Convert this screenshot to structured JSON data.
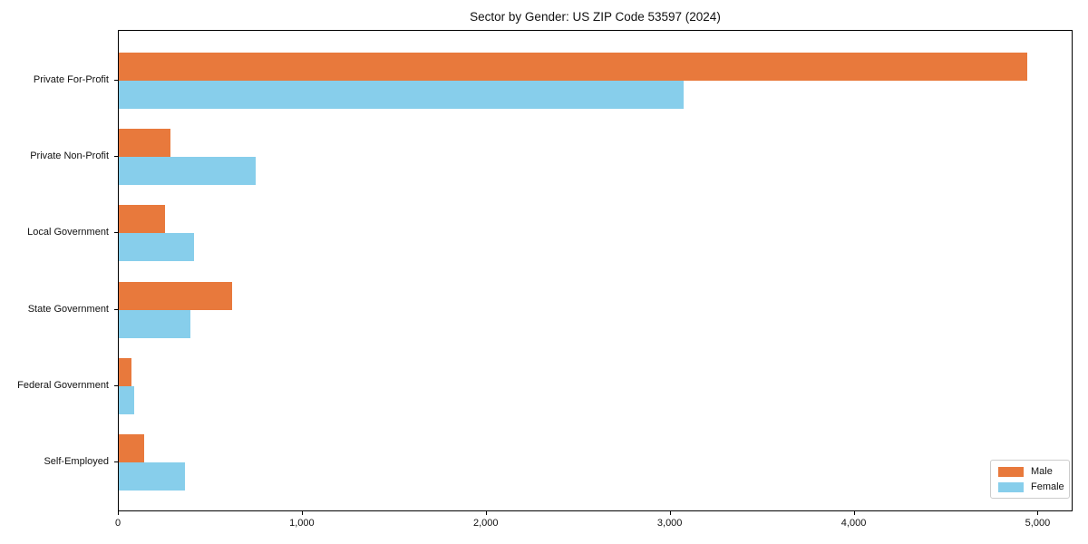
{
  "title": "Sector by Gender: US ZIP Code 53597 (2024)",
  "colors": {
    "male": "#E8793C",
    "female": "#87CEEB",
    "axis": "#000000",
    "legend_border": "#cccccc",
    "background": "#ffffff"
  },
  "legend": {
    "position": "lower right",
    "items": [
      {
        "label": "Male",
        "color": "#E8793C"
      },
      {
        "label": "Female",
        "color": "#87CEEB"
      }
    ]
  },
  "chart_data": {
    "type": "bar",
    "orientation": "horizontal",
    "title": "Sector by Gender: US ZIP Code 53597 (2024)",
    "categories": [
      "Private For-Profit",
      "Private Non-Profit",
      "Local Government",
      "State Government",
      "Federal Government",
      "Self-Employed"
    ],
    "series": [
      {
        "name": "Male",
        "color": "#E8793C",
        "values": [
          4950,
          280,
          250,
          615,
          70,
          140
        ]
      },
      {
        "name": "Female",
        "color": "#87CEEB",
        "values": [
          3075,
          745,
          410,
          390,
          85,
          360
        ]
      }
    ],
    "xlabel": "",
    "ylabel": "",
    "xlim": [
      0,
      5190
    ],
    "xticks": [
      0,
      1000,
      2000,
      3000,
      4000,
      5000
    ],
    "xtick_labels": [
      "0",
      "1,000",
      "2,000",
      "3,000",
      "4,000",
      "5,000"
    ],
    "grid": false,
    "legend_position": "lower right"
  }
}
